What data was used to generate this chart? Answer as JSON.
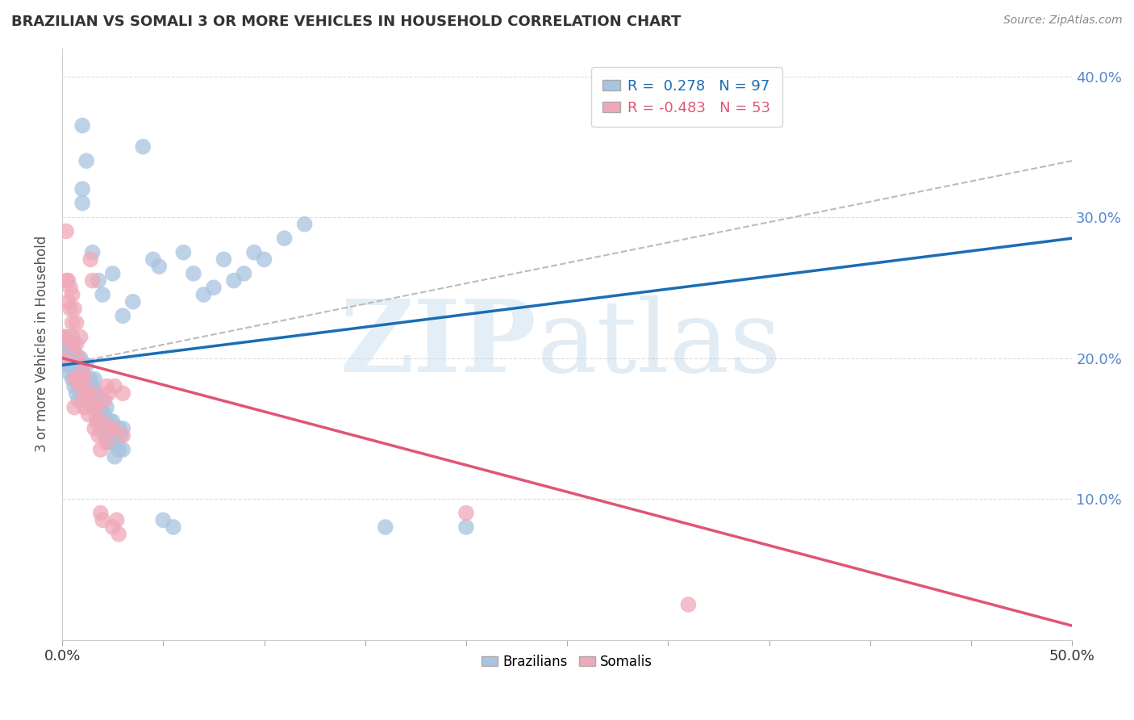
{
  "title": "BRAZILIAN VS SOMALI 3 OR MORE VEHICLES IN HOUSEHOLD CORRELATION CHART",
  "source": "Source: ZipAtlas.com",
  "ylabel": "3 or more Vehicles in Household",
  "xlim": [
    0.0,
    0.5
  ],
  "ylim": [
    0.0,
    0.42
  ],
  "yticks": [
    0.0,
    0.1,
    0.2,
    0.3,
    0.4
  ],
  "ytick_labels_right": [
    "",
    "10.0%",
    "20.0%",
    "30.0%",
    "40.0%"
  ],
  "xtick_vals": [
    0.0,
    0.05,
    0.1,
    0.15,
    0.2,
    0.25,
    0.3,
    0.35,
    0.4,
    0.45,
    0.5
  ],
  "xtick_labels": [
    "0.0%",
    "",
    "",
    "",
    "",
    "",
    "",
    "",
    "",
    "",
    "50.0%"
  ],
  "brazil_color": "#a8c4e0",
  "somali_color": "#f0a8b8",
  "brazil_line_color": "#1a6db5",
  "somali_line_color": "#e05575",
  "dash_line_color": "#bbbbbb",
  "brazil_scatter": [
    [
      0.001,
      0.21
    ],
    [
      0.001,
      0.205
    ],
    [
      0.001,
      0.215
    ],
    [
      0.002,
      0.195
    ],
    [
      0.002,
      0.2
    ],
    [
      0.002,
      0.21
    ],
    [
      0.003,
      0.19
    ],
    [
      0.003,
      0.205
    ],
    [
      0.003,
      0.2
    ],
    [
      0.004,
      0.2
    ],
    [
      0.004,
      0.195
    ],
    [
      0.004,
      0.21
    ],
    [
      0.005,
      0.185
    ],
    [
      0.005,
      0.2
    ],
    [
      0.005,
      0.215
    ],
    [
      0.006,
      0.195
    ],
    [
      0.006,
      0.18
    ],
    [
      0.006,
      0.205
    ],
    [
      0.007,
      0.175
    ],
    [
      0.007,
      0.19
    ],
    [
      0.007,
      0.2
    ],
    [
      0.008,
      0.185
    ],
    [
      0.008,
      0.17
    ],
    [
      0.008,
      0.195
    ],
    [
      0.009,
      0.2
    ],
    [
      0.009,
      0.18
    ],
    [
      0.01,
      0.19
    ],
    [
      0.01,
      0.175
    ],
    [
      0.011,
      0.185
    ],
    [
      0.011,
      0.17
    ],
    [
      0.012,
      0.195
    ],
    [
      0.012,
      0.175
    ],
    [
      0.013,
      0.18
    ],
    [
      0.013,
      0.17
    ],
    [
      0.014,
      0.175
    ],
    [
      0.014,
      0.185
    ],
    [
      0.015,
      0.165
    ],
    [
      0.015,
      0.18
    ],
    [
      0.016,
      0.175
    ],
    [
      0.016,
      0.185
    ],
    [
      0.017,
      0.16
    ],
    [
      0.017,
      0.175
    ],
    [
      0.018,
      0.17
    ],
    [
      0.018,
      0.155
    ],
    [
      0.019,
      0.165
    ],
    [
      0.019,
      0.15
    ],
    [
      0.02,
      0.155
    ],
    [
      0.02,
      0.17
    ],
    [
      0.021,
      0.16
    ],
    [
      0.021,
      0.145
    ],
    [
      0.022,
      0.155
    ],
    [
      0.022,
      0.165
    ],
    [
      0.023,
      0.15
    ],
    [
      0.023,
      0.14
    ],
    [
      0.024,
      0.145
    ],
    [
      0.024,
      0.155
    ],
    [
      0.025,
      0.14
    ],
    [
      0.025,
      0.155
    ],
    [
      0.026,
      0.145
    ],
    [
      0.026,
      0.13
    ],
    [
      0.027,
      0.14
    ],
    [
      0.028,
      0.15
    ],
    [
      0.028,
      0.135
    ],
    [
      0.029,
      0.145
    ],
    [
      0.03,
      0.15
    ],
    [
      0.03,
      0.135
    ],
    [
      0.01,
      0.365
    ],
    [
      0.012,
      0.34
    ],
    [
      0.01,
      0.31
    ],
    [
      0.01,
      0.32
    ],
    [
      0.015,
      0.275
    ],
    [
      0.018,
      0.255
    ],
    [
      0.02,
      0.245
    ],
    [
      0.025,
      0.26
    ],
    [
      0.03,
      0.23
    ],
    [
      0.035,
      0.24
    ],
    [
      0.04,
      0.35
    ],
    [
      0.045,
      0.27
    ],
    [
      0.048,
      0.265
    ],
    [
      0.05,
      0.085
    ],
    [
      0.055,
      0.08
    ],
    [
      0.06,
      0.275
    ],
    [
      0.065,
      0.26
    ],
    [
      0.07,
      0.245
    ],
    [
      0.075,
      0.25
    ],
    [
      0.08,
      0.27
    ],
    [
      0.085,
      0.255
    ],
    [
      0.09,
      0.26
    ],
    [
      0.095,
      0.275
    ],
    [
      0.1,
      0.27
    ],
    [
      0.11,
      0.285
    ],
    [
      0.12,
      0.295
    ],
    [
      0.16,
      0.08
    ],
    [
      0.2,
      0.08
    ]
  ],
  "somali_scatter": [
    [
      0.001,
      0.215
    ],
    [
      0.001,
      0.2
    ],
    [
      0.002,
      0.29
    ],
    [
      0.002,
      0.255
    ],
    [
      0.003,
      0.255
    ],
    [
      0.003,
      0.24
    ],
    [
      0.004,
      0.25
    ],
    [
      0.004,
      0.235
    ],
    [
      0.004,
      0.215
    ],
    [
      0.005,
      0.245
    ],
    [
      0.005,
      0.225
    ],
    [
      0.005,
      0.21
    ],
    [
      0.006,
      0.235
    ],
    [
      0.006,
      0.185
    ],
    [
      0.006,
      0.165
    ],
    [
      0.007,
      0.225
    ],
    [
      0.007,
      0.21
    ],
    [
      0.008,
      0.2
    ],
    [
      0.008,
      0.185
    ],
    [
      0.009,
      0.215
    ],
    [
      0.009,
      0.18
    ],
    [
      0.01,
      0.19
    ],
    [
      0.01,
      0.17
    ],
    [
      0.011,
      0.185
    ],
    [
      0.011,
      0.165
    ],
    [
      0.012,
      0.175
    ],
    [
      0.013,
      0.16
    ],
    [
      0.013,
      0.175
    ],
    [
      0.014,
      0.27
    ],
    [
      0.015,
      0.255
    ],
    [
      0.015,
      0.175
    ],
    [
      0.016,
      0.165
    ],
    [
      0.016,
      0.15
    ],
    [
      0.017,
      0.155
    ],
    [
      0.017,
      0.165
    ],
    [
      0.018,
      0.145
    ],
    [
      0.019,
      0.09
    ],
    [
      0.019,
      0.135
    ],
    [
      0.02,
      0.085
    ],
    [
      0.02,
      0.155
    ],
    [
      0.021,
      0.17
    ],
    [
      0.022,
      0.18
    ],
    [
      0.022,
      0.14
    ],
    [
      0.023,
      0.175
    ],
    [
      0.024,
      0.15
    ],
    [
      0.025,
      0.08
    ],
    [
      0.025,
      0.15
    ],
    [
      0.026,
      0.18
    ],
    [
      0.027,
      0.085
    ],
    [
      0.028,
      0.075
    ],
    [
      0.03,
      0.175
    ],
    [
      0.03,
      0.145
    ],
    [
      0.2,
      0.09
    ],
    [
      0.31,
      0.025
    ]
  ],
  "brazil_trend": [
    0.0,
    0.195,
    0.5,
    0.285
  ],
  "somali_trend": [
    0.0,
    0.2,
    0.5,
    0.01
  ],
  "dash_trend": [
    0.0,
    0.195,
    0.5,
    0.34
  ]
}
